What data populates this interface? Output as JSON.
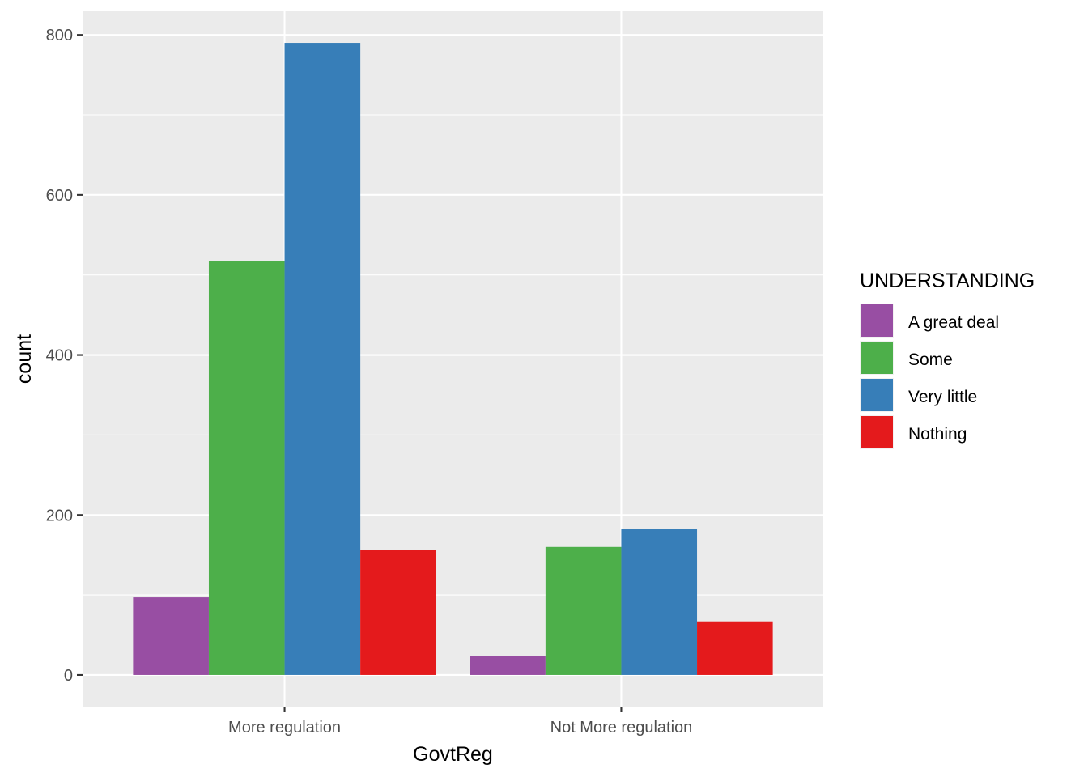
{
  "chart_data": {
    "type": "bar",
    "categories": [
      "More regulation",
      "Not More regulation"
    ],
    "series": [
      {
        "name": "A great deal",
        "values": [
          97,
          24
        ],
        "color": "#984EA3"
      },
      {
        "name": "Some",
        "values": [
          517,
          160
        ],
        "color": "#4DAF4A"
      },
      {
        "name": "Very little",
        "values": [
          790,
          183
        ],
        "color": "#377EB8"
      },
      {
        "name": "Nothing",
        "values": [
          156,
          67
        ],
        "color": "#E41A1C"
      }
    ],
    "xlabel": "GovtReg",
    "ylabel": "count",
    "ylim": [
      -39.5,
      829.5
    ],
    "yticks": [
      0,
      200,
      400,
      600,
      800
    ],
    "legend_title": "UNDERSTANDING",
    "legend_position": "right",
    "grid": true,
    "panel_background": "#EBEBEB",
    "grid_color": "#FFFFFF"
  }
}
